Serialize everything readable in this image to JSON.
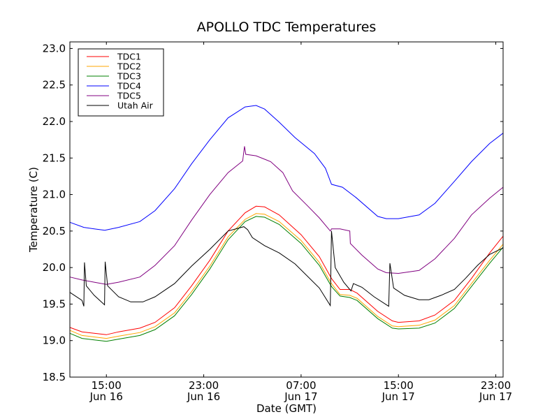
{
  "chart_data": {
    "type": "line",
    "title": "APOLLO TDC Temperatures",
    "xlabel": "Date (GMT)",
    "ylabel": "Temperature (C)",
    "x_units": "hours since 12:00 Jun 16 (GMT)",
    "xlim": [
      0,
      35.6
    ],
    "ylim": [
      18.5,
      23.09
    ],
    "grid": false,
    "legend_position": "top-left",
    "yticks": [
      18.5,
      19.0,
      19.5,
      20.0,
      20.5,
      21.0,
      21.5,
      22.0,
      22.5,
      23.0
    ],
    "ytick_labels": [
      "18.5",
      "19.0",
      "19.5",
      "20.0",
      "20.5",
      "21.0",
      "21.5",
      "22.0",
      "22.5",
      "23.0"
    ],
    "xticks": [
      {
        "x": 3,
        "time": "15:00",
        "date": "Jun 16"
      },
      {
        "x": 11,
        "time": "23:00",
        "date": "Jun 16"
      },
      {
        "x": 19,
        "time": "07:00",
        "date": "Jun 17"
      },
      {
        "x": 27,
        "time": "15:00",
        "date": "Jun 17"
      },
      {
        "x": 35,
        "time": "23:00",
        "date": "Jun 17"
      }
    ],
    "series": [
      {
        "name": "TDC1",
        "color": "#ff0000",
        "points": [
          [
            0,
            19.18
          ],
          [
            1,
            19.12
          ],
          [
            2,
            19.1
          ],
          [
            3,
            19.08
          ],
          [
            4,
            19.12
          ],
          [
            5.75,
            19.17
          ],
          [
            7,
            19.25
          ],
          [
            8.6,
            19.45
          ],
          [
            10,
            19.75
          ],
          [
            11.5,
            20.1
          ],
          [
            13,
            20.5
          ],
          [
            14.4,
            20.75
          ],
          [
            15.3,
            20.84
          ],
          [
            16,
            20.83
          ],
          [
            17.2,
            20.72
          ],
          [
            19,
            20.45
          ],
          [
            20.5,
            20.15
          ],
          [
            21.5,
            19.85
          ],
          [
            22.2,
            19.7
          ],
          [
            23,
            19.7
          ],
          [
            23.6,
            19.65
          ],
          [
            25.3,
            19.4
          ],
          [
            26.5,
            19.27
          ],
          [
            27,
            19.25
          ],
          [
            28.7,
            19.27
          ],
          [
            30,
            19.35
          ],
          [
            31.6,
            19.55
          ],
          [
            33,
            19.85
          ],
          [
            34.5,
            20.2
          ],
          [
            35.6,
            20.43
          ]
        ]
      },
      {
        "name": "TDC2",
        "color": "#ffa500",
        "points": [
          [
            0,
            19.14
          ],
          [
            1,
            19.07
          ],
          [
            2,
            19.05
          ],
          [
            3,
            19.03
          ],
          [
            4,
            19.06
          ],
          [
            5.75,
            19.11
          ],
          [
            7,
            19.19
          ],
          [
            8.6,
            19.38
          ],
          [
            10,
            19.67
          ],
          [
            11.5,
            20.02
          ],
          [
            13,
            20.42
          ],
          [
            14.4,
            20.66
          ],
          [
            15.3,
            20.74
          ],
          [
            16,
            20.73
          ],
          [
            17.2,
            20.63
          ],
          [
            19,
            20.37
          ],
          [
            20.5,
            20.07
          ],
          [
            21.5,
            19.78
          ],
          [
            22.2,
            19.63
          ],
          [
            23,
            19.62
          ],
          [
            23.6,
            19.58
          ],
          [
            25.3,
            19.33
          ],
          [
            26.5,
            19.2
          ],
          [
            27,
            19.19
          ],
          [
            28.7,
            19.21
          ],
          [
            30,
            19.28
          ],
          [
            31.6,
            19.48
          ],
          [
            33,
            19.78
          ],
          [
            34.5,
            20.1
          ],
          [
            35.6,
            20.32
          ]
        ]
      },
      {
        "name": "TDC3",
        "color": "#008000",
        "points": [
          [
            0,
            19.1
          ],
          [
            1,
            19.03
          ],
          [
            2,
            19.01
          ],
          [
            3,
            18.99
          ],
          [
            4,
            19.02
          ],
          [
            5.75,
            19.07
          ],
          [
            7,
            19.15
          ],
          [
            8.6,
            19.34
          ],
          [
            10,
            19.63
          ],
          [
            11.5,
            19.98
          ],
          [
            13,
            20.38
          ],
          [
            14.4,
            20.63
          ],
          [
            15.3,
            20.7
          ],
          [
            16,
            20.69
          ],
          [
            17.2,
            20.59
          ],
          [
            19,
            20.33
          ],
          [
            20.5,
            20.03
          ],
          [
            21.5,
            19.74
          ],
          [
            22.2,
            19.61
          ],
          [
            23,
            19.59
          ],
          [
            23.6,
            19.55
          ],
          [
            25.3,
            19.3
          ],
          [
            26.5,
            19.17
          ],
          [
            27,
            19.16
          ],
          [
            28.7,
            19.17
          ],
          [
            30,
            19.24
          ],
          [
            31.6,
            19.44
          ],
          [
            33,
            19.74
          ],
          [
            34.5,
            20.06
          ],
          [
            35.6,
            20.28
          ]
        ]
      },
      {
        "name": "TDC4",
        "color": "#0000ff",
        "points": [
          [
            0,
            20.62
          ],
          [
            1.15,
            20.55
          ],
          [
            2,
            20.53
          ],
          [
            2.87,
            20.51
          ],
          [
            4,
            20.55
          ],
          [
            5.75,
            20.63
          ],
          [
            7,
            20.78
          ],
          [
            8.6,
            21.08
          ],
          [
            10,
            21.42
          ],
          [
            11.5,
            21.75
          ],
          [
            13,
            22.05
          ],
          [
            14.4,
            22.2
          ],
          [
            15.3,
            22.22
          ],
          [
            16,
            22.17
          ],
          [
            17.2,
            21.99
          ],
          [
            18.5,
            21.78
          ],
          [
            20.1,
            21.56
          ],
          [
            21,
            21.36
          ],
          [
            21.5,
            21.14
          ],
          [
            22.4,
            21.1
          ],
          [
            23.5,
            20.96
          ],
          [
            25.3,
            20.7
          ],
          [
            26,
            20.67
          ],
          [
            27,
            20.67
          ],
          [
            28.7,
            20.72
          ],
          [
            30,
            20.88
          ],
          [
            31.6,
            21.18
          ],
          [
            33,
            21.45
          ],
          [
            34.5,
            21.7
          ],
          [
            35.6,
            21.84
          ]
        ]
      },
      {
        "name": "TDC5",
        "color": "#800080",
        "points": [
          [
            0,
            19.87
          ],
          [
            1,
            19.83
          ],
          [
            2,
            19.8
          ],
          [
            3,
            19.77
          ],
          [
            4,
            19.8
          ],
          [
            5.75,
            19.87
          ],
          [
            7,
            20.03
          ],
          [
            8.6,
            20.3
          ],
          [
            10,
            20.65
          ],
          [
            11.5,
            21.0
          ],
          [
            13,
            21.3
          ],
          [
            14.2,
            21.46
          ],
          [
            14.35,
            21.66
          ],
          [
            14.45,
            21.55
          ],
          [
            15.3,
            21.53
          ],
          [
            16.5,
            21.45
          ],
          [
            17.5,
            21.3
          ],
          [
            18.3,
            21.05
          ],
          [
            19.5,
            20.85
          ],
          [
            20.5,
            20.68
          ],
          [
            21.4,
            20.5
          ],
          [
            21.5,
            20.53
          ],
          [
            22.2,
            20.53
          ],
          [
            23,
            20.5
          ],
          [
            23.05,
            20.33
          ],
          [
            24,
            20.17
          ],
          [
            25.3,
            19.98
          ],
          [
            26,
            19.93
          ],
          [
            27,
            19.92
          ],
          [
            28.7,
            19.96
          ],
          [
            30,
            20.12
          ],
          [
            31.6,
            20.4
          ],
          [
            33,
            20.72
          ],
          [
            34.5,
            20.95
          ],
          [
            35.6,
            21.1
          ]
        ]
      },
      {
        "name": "Utah Air",
        "color": "#000000",
        "points": [
          [
            0,
            19.66
          ],
          [
            1,
            19.55
          ],
          [
            1.15,
            19.47
          ],
          [
            1.2,
            20.07
          ],
          [
            1.35,
            19.75
          ],
          [
            2,
            19.62
          ],
          [
            2.85,
            19.49
          ],
          [
            2.9,
            20.08
          ],
          [
            3.1,
            19.75
          ],
          [
            4,
            19.6
          ],
          [
            5,
            19.53
          ],
          [
            6,
            19.53
          ],
          [
            7,
            19.6
          ],
          [
            8.6,
            19.78
          ],
          [
            10,
            20.02
          ],
          [
            11.5,
            20.25
          ],
          [
            13,
            20.5
          ],
          [
            14.3,
            20.56
          ],
          [
            14.6,
            20.52
          ],
          [
            15,
            20.41
          ],
          [
            16,
            20.3
          ],
          [
            17.2,
            20.2
          ],
          [
            18.5,
            20.05
          ],
          [
            20.5,
            19.72
          ],
          [
            21.4,
            19.48
          ],
          [
            21.5,
            20.5
          ],
          [
            21.8,
            20.0
          ],
          [
            22.5,
            19.8
          ],
          [
            23.1,
            19.68
          ],
          [
            23.3,
            19.78
          ],
          [
            24,
            19.73
          ],
          [
            25,
            19.6
          ],
          [
            26.2,
            19.47
          ],
          [
            26.3,
            20.06
          ],
          [
            26.6,
            19.72
          ],
          [
            27.5,
            19.62
          ],
          [
            28.7,
            19.56
          ],
          [
            29.5,
            19.56
          ],
          [
            30.5,
            19.62
          ],
          [
            31.6,
            19.7
          ],
          [
            32.5,
            19.85
          ],
          [
            33.5,
            20.03
          ],
          [
            34.5,
            20.18
          ],
          [
            35.6,
            20.27
          ]
        ]
      }
    ]
  }
}
